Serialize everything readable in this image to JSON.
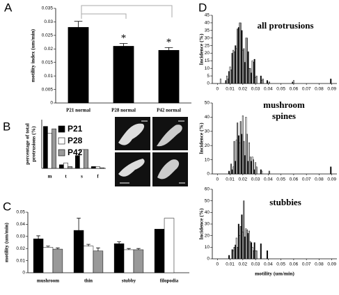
{
  "chart_data": [
    {
      "panel": "A",
      "type": "bar",
      "ylabel": "motility index (um/min)",
      "categories": [
        "P21 normal",
        "P28 normal",
        "P42 normal"
      ],
      "series": [
        {
          "color": "#000000",
          "values": [
            0.028,
            0.021,
            0.0195
          ],
          "errors": [
            0.0022,
            0.001,
            0.001
          ]
        }
      ],
      "annotations": [
        null,
        "*",
        "*"
      ],
      "ylim": [
        0,
        0.035
      ],
      "yticks": [
        0,
        0.005,
        0.01,
        0.015,
        0.02,
        0.025,
        0.03,
        0.035
      ]
    },
    {
      "panel": "B",
      "type": "bar",
      "ylabel": "percentage of total protrusions (%)",
      "categories": [
        "m",
        "t",
        "s",
        "f"
      ],
      "series": [
        {
          "name": "P21",
          "color": "#000000",
          "values": [
            69,
            6,
            21,
            3
          ]
        },
        {
          "name": "P28",
          "color": "#ffffff",
          "values": [
            58,
            9,
            31,
            3
          ]
        },
        {
          "name": "P42",
          "color": "#999999",
          "values": [
            65,
            3,
            31,
            1
          ]
        }
      ],
      "legend": true,
      "ylim": [
        0,
        80
      ]
    },
    {
      "panel": "C",
      "type": "bar",
      "ylabel": "motility (um/min)",
      "categories": [
        "mushroom",
        "thin",
        "stubby",
        "filopodia"
      ],
      "series": [
        {
          "color": "#000000",
          "values": [
            0.028,
            0.035,
            0.024,
            0.036
          ],
          "errors": [
            0.0025,
            0.01,
            0.0015,
            null
          ]
        },
        {
          "color": "#ffffff",
          "values": [
            0.021,
            0.022,
            0.019,
            0.045
          ],
          "errors": [
            0.001,
            0.0015,
            0.001,
            null
          ]
        },
        {
          "color": "#999999",
          "values": [
            0.0195,
            0.018,
            0.019,
            null
          ],
          "errors": [
            0.001,
            0.0025,
            0.001,
            null
          ]
        }
      ],
      "ylim": [
        0,
        0.05
      ],
      "yticks": [
        0,
        0.01,
        0.02,
        0.03,
        0.04,
        0.05
      ]
    },
    {
      "panel": "D",
      "type": "bar",
      "title": "all protrusions",
      "ylabel": "Incidence (%)",
      "x": [
        0.0025,
        0.005,
        0.0075,
        0.01,
        0.0125,
        0.015,
        0.0175,
        0.02,
        0.0225,
        0.025,
        0.0275,
        0.03,
        0.035,
        0.04,
        0.06,
        0.09
      ],
      "series": [
        {
          "color": "#000000",
          "values": [
            0,
            0,
            2,
            8,
            20,
            25,
            37,
            35,
            14,
            21,
            7,
            16,
            5,
            2,
            1,
            3
          ]
        },
        {
          "color": "#ffffff",
          "values": [
            3,
            0,
            5,
            11,
            22,
            23,
            40,
            22,
            30,
            10,
            15,
            4,
            2,
            0,
            2,
            0
          ]
        },
        {
          "color": "#999999",
          "values": [
            0,
            0,
            3,
            9,
            21,
            36,
            40,
            23,
            30,
            10,
            14,
            5,
            3,
            1,
            0,
            0
          ]
        }
      ],
      "xlim": [
        -0.004,
        0.094
      ],
      "xticks": [
        0,
        0.01,
        0.02,
        0.03,
        0.04,
        0.05,
        0.06,
        0.07,
        0.08,
        0.09
      ],
      "ylim": [
        0,
        45
      ],
      "yticks": [
        0,
        5,
        10,
        15,
        20,
        25,
        30,
        35,
        40,
        45
      ]
    },
    {
      "type": "bar",
      "title": "mushroom spines",
      "ylabel": "Incidence (%)",
      "x": [
        0.0025,
        0.005,
        0.0075,
        0.01,
        0.0125,
        0.015,
        0.0175,
        0.02,
        0.0225,
        0.025,
        0.0275,
        0.03,
        0.035,
        0.04,
        0.06,
        0.09
      ],
      "series": [
        {
          "color": "#000000",
          "values": [
            0,
            0,
            0,
            2,
            3,
            9,
            27,
            28,
            13,
            9,
            9,
            3,
            3,
            0,
            0,
            5
          ]
        },
        {
          "color": "#ffffff",
          "values": [
            0,
            0,
            0,
            0,
            5,
            24,
            22,
            41,
            40,
            22,
            12,
            8,
            2,
            0,
            0,
            0
          ]
        },
        {
          "color": "#999999",
          "values": [
            0,
            0,
            0,
            7,
            23,
            36,
            37,
            23,
            28,
            12,
            10,
            5,
            0,
            2,
            0,
            0
          ]
        }
      ],
      "xlim": [
        -0.004,
        0.094
      ],
      "xticks": [
        0,
        0.01,
        0.02,
        0.03,
        0.04,
        0.05,
        0.06,
        0.07,
        0.08,
        0.09
      ],
      "ylim": [
        0,
        50
      ],
      "yticks": [
        0,
        10,
        20,
        30,
        40,
        50
      ]
    },
    {
      "type": "bar",
      "title": "stubbies",
      "ylabel": "Incidence (%)",
      "xlabel": "motility (um/min)",
      "x": [
        0.0025,
        0.005,
        0.0075,
        0.01,
        0.0125,
        0.015,
        0.0175,
        0.02,
        0.0225,
        0.025,
        0.0275,
        0.03,
        0.035,
        0.04,
        0.06,
        0.09
      ],
      "series": [
        {
          "color": "#000000",
          "values": [
            0,
            0,
            0,
            3,
            8,
            12,
            30,
            38,
            19,
            22,
            14,
            14,
            13,
            7,
            0,
            0
          ]
        },
        {
          "color": "#ffffff",
          "values": [
            0,
            0,
            0,
            0,
            7,
            18,
            20,
            23,
            26,
            24,
            10,
            7,
            0,
            0,
            0,
            0
          ]
        },
        {
          "color": "#999999",
          "values": [
            0,
            0,
            0,
            0,
            10,
            10,
            28,
            50,
            25,
            15,
            7,
            7,
            0,
            0,
            0,
            0
          ]
        }
      ],
      "xlim": [
        -0.004,
        0.094
      ],
      "xticks": [
        0,
        0.01,
        0.02,
        0.03,
        0.04,
        0.05,
        0.06,
        0.07,
        0.08,
        0.09
      ],
      "ylim": [
        0,
        60
      ],
      "yticks": [
        0,
        10,
        20,
        30,
        40,
        50,
        60
      ]
    }
  ]
}
